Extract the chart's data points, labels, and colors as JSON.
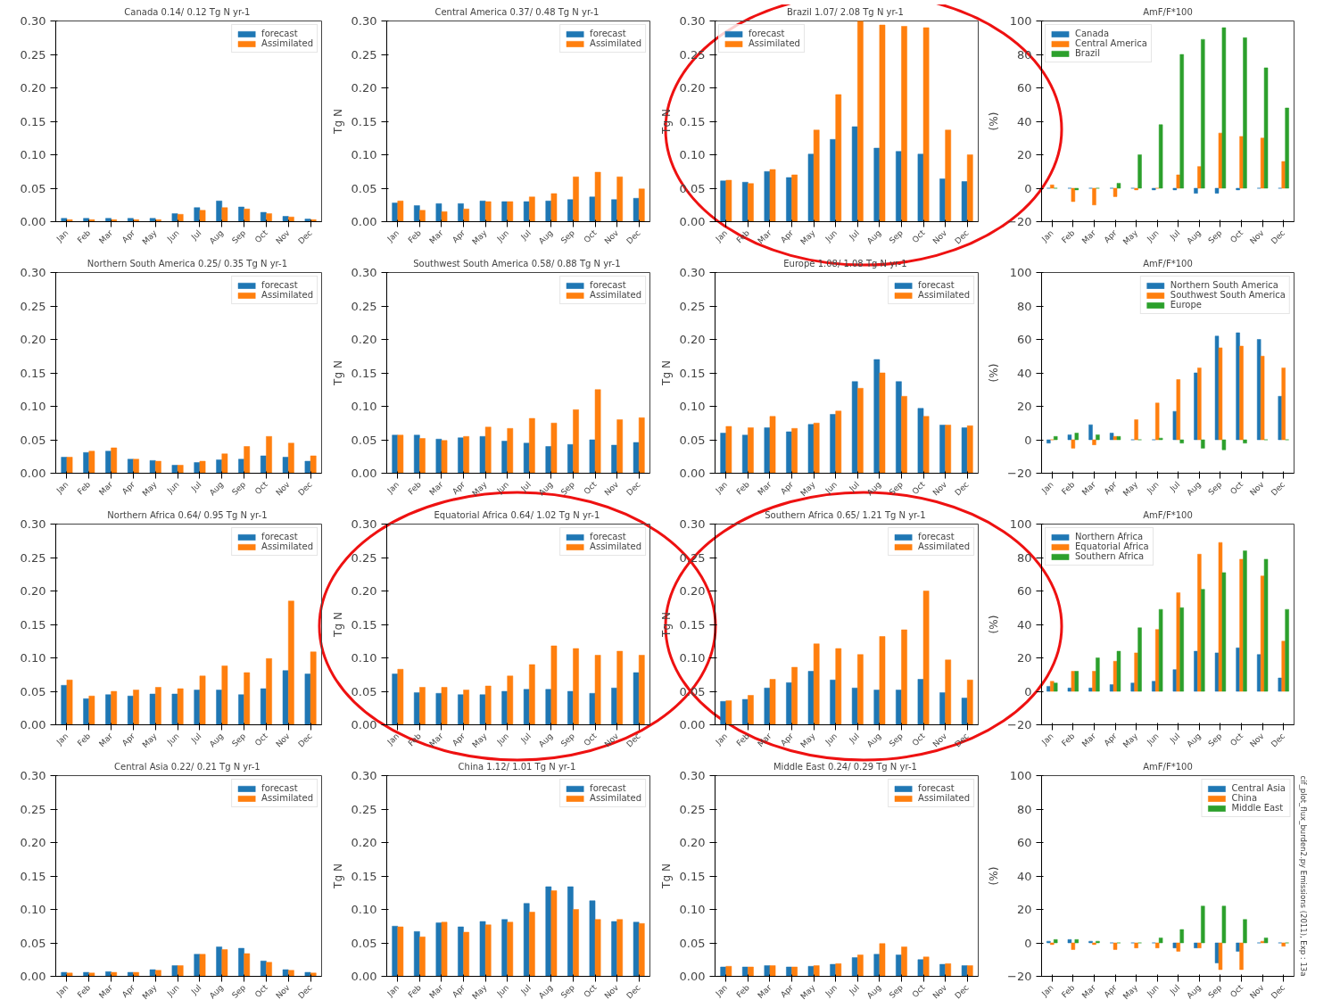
{
  "chart_data": [
    {
      "type": "bar",
      "title": "Canada  0.14/ 0.12 Tg N yr-1",
      "categories": [
        "Jan",
        "Feb",
        "Mar",
        "Apr",
        "May",
        "Jun",
        "Jul",
        "Aug",
        "Sep",
        "Oct",
        "Nov",
        "Dec"
      ],
      "ylim": [
        0,
        0.3
      ],
      "yticks": [
        {
          "value": 0,
          "label": "0.00"
        },
        {
          "value": 0.05,
          "label": "0.05"
        },
        {
          "value": 0.1,
          "label": "0.10"
        },
        {
          "value": 0.15,
          "label": "0.15"
        },
        {
          "value": 0.2,
          "label": "0.20"
        },
        {
          "value": 0.25,
          "label": "0.25"
        },
        {
          "value": 0.3,
          "label": "0.30"
        }
      ],
      "legend": "top right",
      "series": [
        {
          "name": "forecast",
          "color": "#1f77b4",
          "values": [
            0.005,
            0.005,
            0.005,
            0.005,
            0.005,
            0.012,
            0.021,
            0.031,
            0.022,
            0.014,
            0.008,
            0.004
          ]
        },
        {
          "name": "Assimilated",
          "color": "#ff7f0e",
          "values": [
            0.003,
            0.003,
            0.003,
            0.003,
            0.003,
            0.011,
            0.017,
            0.021,
            0.019,
            0.012,
            0.007,
            0.003
          ]
        }
      ]
    },
    {
      "type": "bar",
      "title": "Central America  0.37/ 0.48 Tg N yr-1",
      "ylabel": "Tg N",
      "categories": [
        "Jan",
        "Feb",
        "Mar",
        "Apr",
        "May",
        "Jun",
        "Jul",
        "Aug",
        "Sep",
        "Oct",
        "Nov",
        "Dec"
      ],
      "ylim": [
        0,
        0.3
      ],
      "yticks": [
        {
          "value": 0,
          "label": "0.00"
        },
        {
          "value": 0.05,
          "label": "0.05"
        },
        {
          "value": 0.1,
          "label": "0.10"
        },
        {
          "value": 0.15,
          "label": "0.15"
        },
        {
          "value": 0.2,
          "label": "0.20"
        },
        {
          "value": 0.25,
          "label": "0.25"
        },
        {
          "value": 0.3,
          "label": "0.30"
        }
      ],
      "legend": "top right",
      "series": [
        {
          "name": "forecast",
          "color": "#1f77b4",
          "values": [
            0.028,
            0.024,
            0.027,
            0.027,
            0.031,
            0.03,
            0.03,
            0.031,
            0.033,
            0.037,
            0.033,
            0.035
          ]
        },
        {
          "name": "Assimilated",
          "color": "#ff7f0e",
          "values": [
            0.031,
            0.017,
            0.015,
            0.019,
            0.03,
            0.03,
            0.037,
            0.042,
            0.067,
            0.074,
            0.067,
            0.049
          ]
        }
      ]
    },
    {
      "type": "bar",
      "title": "Brazil  1.07/ 2.08 Tg N yr-1",
      "ylabel": "Tg N",
      "categories": [
        "Jan",
        "Feb",
        "Mar",
        "Apr",
        "May",
        "Jun",
        "Jul",
        "Aug",
        "Sep",
        "Oct",
        "Nov",
        "Dec"
      ],
      "ylim": [
        0,
        0.3
      ],
      "yticks": [
        {
          "value": 0,
          "label": "0.00"
        },
        {
          "value": 0.05,
          "label": "0.05"
        },
        {
          "value": 0.1,
          "label": "0.10"
        },
        {
          "value": 0.15,
          "label": "0.15"
        },
        {
          "value": 0.2,
          "label": "0.20"
        },
        {
          "value": 0.25,
          "label": "0.25"
        },
        {
          "value": 0.3,
          "label": "0.30"
        }
      ],
      "legend": "top left",
      "series": [
        {
          "name": "forecast",
          "color": "#1f77b4",
          "values": [
            0.061,
            0.059,
            0.075,
            0.066,
            0.101,
            0.123,
            0.142,
            0.11,
            0.105,
            0.101,
            0.064,
            0.06
          ]
        },
        {
          "name": "Assimilated",
          "color": "#ff7f0e",
          "values": [
            0.062,
            0.057,
            0.078,
            0.07,
            0.137,
            0.19,
            0.3,
            0.294,
            0.292,
            0.29,
            0.137,
            0.1
          ]
        }
      ]
    },
    {
      "type": "bar",
      "title": "AmF/F*100",
      "ylabel": "(%)",
      "categories": [
        "Jan",
        "Feb",
        "Mar",
        "Apr",
        "May",
        "Jun",
        "Jul",
        "Aug",
        "Sep",
        "Oct",
        "Nov",
        "Dec"
      ],
      "ylim": [
        -20,
        100
      ],
      "yticks": [
        {
          "value": -20,
          "label": "−20"
        },
        0,
        20,
        40,
        60,
        80,
        100
      ],
      "legend": "top left",
      "series": [
        {
          "name": "Canada",
          "color": "#1f77b4",
          "values": [
            0,
            0,
            0,
            0,
            0,
            -1,
            -1,
            -3,
            -3,
            -1,
            0,
            0
          ]
        },
        {
          "name": "Central America",
          "color": "#ff7f0e",
          "values": [
            2,
            -8,
            -10,
            -5,
            -1,
            0,
            8,
            13,
            33,
            31,
            30,
            16
          ]
        },
        {
          "name": "Brazil",
          "color": "#2ca02c",
          "values": [
            0,
            -1,
            0,
            3,
            20,
            38,
            80,
            89,
            96,
            90,
            72,
            48
          ]
        }
      ]
    },
    {
      "type": "bar",
      "title": "Northern South America  0.25/ 0.35 Tg N yr-1",
      "categories": [
        "Jan",
        "Feb",
        "Mar",
        "Apr",
        "May",
        "Jun",
        "Jul",
        "Aug",
        "Sep",
        "Oct",
        "Nov",
        "Dec"
      ],
      "ylim": [
        0,
        0.3
      ],
      "yticks": [
        {
          "value": 0,
          "label": "0.00"
        },
        {
          "value": 0.05,
          "label": "0.05"
        },
        {
          "value": 0.1,
          "label": "0.10"
        },
        {
          "value": 0.15,
          "label": "0.15"
        },
        {
          "value": 0.2,
          "label": "0.20"
        },
        {
          "value": 0.25,
          "label": "0.25"
        },
        {
          "value": 0.3,
          "label": "0.30"
        }
      ],
      "legend": "top right",
      "series": [
        {
          "name": "forecast",
          "color": "#1f77b4",
          "values": [
            0.024,
            0.031,
            0.033,
            0.021,
            0.019,
            0.012,
            0.016,
            0.02,
            0.021,
            0.026,
            0.024,
            0.018
          ]
        },
        {
          "name": "Assimilated",
          "color": "#ff7f0e",
          "values": [
            0.024,
            0.033,
            0.038,
            0.021,
            0.018,
            0.012,
            0.018,
            0.029,
            0.04,
            0.055,
            0.045,
            0.026
          ]
        }
      ]
    },
    {
      "type": "bar",
      "title": "Southwest South America  0.58/ 0.88 Tg N yr-1",
      "ylabel": "Tg N",
      "categories": [
        "Jan",
        "Feb",
        "Mar",
        "Apr",
        "May",
        "Jun",
        "Jul",
        "Aug",
        "Sep",
        "Oct",
        "Nov",
        "Dec"
      ],
      "ylim": [
        0,
        0.3
      ],
      "yticks": [
        {
          "value": 0,
          "label": "0.00"
        },
        {
          "value": 0.05,
          "label": "0.05"
        },
        {
          "value": 0.1,
          "label": "0.10"
        },
        {
          "value": 0.15,
          "label": "0.15"
        },
        {
          "value": 0.2,
          "label": "0.20"
        },
        {
          "value": 0.25,
          "label": "0.25"
        },
        {
          "value": 0.3,
          "label": "0.30"
        }
      ],
      "legend": "top right",
      "series": [
        {
          "name": "forecast",
          "color": "#1f77b4",
          "values": [
            0.057,
            0.057,
            0.051,
            0.053,
            0.055,
            0.048,
            0.045,
            0.04,
            0.043,
            0.05,
            0.042,
            0.046
          ]
        },
        {
          "name": "Assimilated",
          "color": "#ff7f0e",
          "values": [
            0.057,
            0.052,
            0.049,
            0.055,
            0.069,
            0.067,
            0.082,
            0.075,
            0.095,
            0.125,
            0.08,
            0.083
          ]
        }
      ]
    },
    {
      "type": "bar",
      "title": "Europe  1.08/ 1.08 Tg N yr-1",
      "ylabel": "Tg N",
      "categories": [
        "Jan",
        "Feb",
        "Mar",
        "Apr",
        "May",
        "Jun",
        "Jul",
        "Aug",
        "Sep",
        "Oct",
        "Nov",
        "Dec"
      ],
      "ylim": [
        0,
        0.3
      ],
      "yticks": [
        {
          "value": 0,
          "label": "0.00"
        },
        {
          "value": 0.05,
          "label": "0.05"
        },
        {
          "value": 0.1,
          "label": "0.10"
        },
        {
          "value": 0.15,
          "label": "0.15"
        },
        {
          "value": 0.2,
          "label": "0.20"
        },
        {
          "value": 0.25,
          "label": "0.25"
        },
        {
          "value": 0.3,
          "label": "0.30"
        }
      ],
      "legend": "top right",
      "series": [
        {
          "name": "forecast",
          "color": "#1f77b4",
          "values": [
            0.06,
            0.057,
            0.068,
            0.062,
            0.073,
            0.088,
            0.137,
            0.17,
            0.137,
            0.097,
            0.072,
            0.068
          ]
        },
        {
          "name": "Assimilated",
          "color": "#ff7f0e",
          "values": [
            0.07,
            0.068,
            0.085,
            0.067,
            0.075,
            0.093,
            0.127,
            0.15,
            0.115,
            0.085,
            0.072,
            0.071
          ]
        }
      ]
    },
    {
      "type": "bar",
      "title": "AmF/F*100",
      "ylabel": "(%)",
      "categories": [
        "Jan",
        "Feb",
        "Mar",
        "Apr",
        "May",
        "Jun",
        "Jul",
        "Aug",
        "Sep",
        "Oct",
        "Nov",
        "Dec"
      ],
      "ylim": [
        -20,
        100
      ],
      "yticks": [
        {
          "value": -20,
          "label": "−20"
        },
        0,
        20,
        40,
        60,
        80,
        100
      ],
      "legend": "top right",
      "series": [
        {
          "name": "Northern South America",
          "color": "#1f77b4",
          "values": [
            -2,
            3,
            9,
            4,
            0,
            0,
            17,
            40,
            62,
            64,
            60,
            26
          ]
        },
        {
          "name": "Southwest South America",
          "color": "#ff7f0e",
          "values": [
            0,
            -5,
            -3,
            2,
            12,
            22,
            36,
            43,
            55,
            56,
            50,
            43
          ]
        },
        {
          "name": "Europe",
          "color": "#2ca02c",
          "values": [
            2,
            4,
            3,
            2,
            0,
            1,
            -2,
            -5,
            -6,
            -2,
            0,
            0
          ]
        }
      ]
    },
    {
      "type": "bar",
      "title": "Northern Africa  0.64/ 0.95 Tg N yr-1",
      "categories": [
        "Jan",
        "Feb",
        "Mar",
        "Apr",
        "May",
        "Jun",
        "Jul",
        "Aug",
        "Sep",
        "Oct",
        "Nov",
        "Dec"
      ],
      "ylim": [
        0,
        0.3
      ],
      "yticks": [
        {
          "value": 0,
          "label": "0.00"
        },
        {
          "value": 0.05,
          "label": "0.05"
        },
        {
          "value": 0.1,
          "label": "0.10"
        },
        {
          "value": 0.15,
          "label": "0.15"
        },
        {
          "value": 0.2,
          "label": "0.20"
        },
        {
          "value": 0.25,
          "label": "0.25"
        },
        {
          "value": 0.3,
          "label": "0.30"
        }
      ],
      "legend": "top right",
      "series": [
        {
          "name": "forecast",
          "color": "#1f77b4",
          "values": [
            0.059,
            0.039,
            0.045,
            0.043,
            0.046,
            0.046,
            0.052,
            0.052,
            0.045,
            0.054,
            0.081,
            0.076
          ]
        },
        {
          "name": "Assimilated",
          "color": "#ff7f0e",
          "values": [
            0.067,
            0.043,
            0.05,
            0.052,
            0.056,
            0.054,
            0.073,
            0.088,
            0.078,
            0.099,
            0.185,
            0.109
          ]
        }
      ]
    },
    {
      "type": "bar",
      "title": "Equatorial Africa  0.64/ 1.02 Tg N yr-1",
      "ylabel": "Tg N",
      "categories": [
        "Jan",
        "Feb",
        "Mar",
        "Apr",
        "May",
        "Jun",
        "Jul",
        "Aug",
        "Sep",
        "Oct",
        "Nov",
        "Dec"
      ],
      "ylim": [
        0,
        0.3
      ],
      "yticks": [
        {
          "value": 0,
          "label": "0.00"
        },
        {
          "value": 0.05,
          "label": "0.05"
        },
        {
          "value": 0.1,
          "label": "0.10"
        },
        {
          "value": 0.15,
          "label": "0.15"
        },
        {
          "value": 0.2,
          "label": "0.20"
        },
        {
          "value": 0.25,
          "label": "0.25"
        },
        {
          "value": 0.3,
          "label": "0.30"
        }
      ],
      "legend": "top right",
      "series": [
        {
          "name": "forecast",
          "color": "#1f77b4",
          "values": [
            0.076,
            0.048,
            0.047,
            0.045,
            0.045,
            0.05,
            0.053,
            0.053,
            0.05,
            0.047,
            0.055,
            0.078
          ]
        },
        {
          "name": "Assimilated",
          "color": "#ff7f0e",
          "values": [
            0.083,
            0.056,
            0.056,
            0.052,
            0.058,
            0.073,
            0.09,
            0.118,
            0.114,
            0.104,
            0.11,
            0.104
          ]
        }
      ]
    },
    {
      "type": "bar",
      "title": "Southern Africa  0.65/ 1.21 Tg N yr-1",
      "ylabel": "Tg N",
      "categories": [
        "Jan",
        "Feb",
        "Mar",
        "Apr",
        "May",
        "Jun",
        "Jul",
        "Aug",
        "Sep",
        "Oct",
        "Nov",
        "Dec"
      ],
      "ylim": [
        0,
        0.3
      ],
      "yticks": [
        {
          "value": 0,
          "label": "0.00"
        },
        {
          "value": 0.05,
          "label": "0.05"
        },
        {
          "value": 0.1,
          "label": "0.10"
        },
        {
          "value": 0.15,
          "label": "0.15"
        },
        {
          "value": 0.2,
          "label": "0.20"
        },
        {
          "value": 0.25,
          "label": "0.25"
        },
        {
          "value": 0.3,
          "label": "0.30"
        }
      ],
      "legend": "top right",
      "series": [
        {
          "name": "forecast",
          "color": "#1f77b4",
          "values": [
            0.035,
            0.038,
            0.055,
            0.063,
            0.08,
            0.067,
            0.055,
            0.052,
            0.052,
            0.068,
            0.048,
            0.04
          ]
        },
        {
          "name": "Assimilated",
          "color": "#ff7f0e",
          "values": [
            0.036,
            0.044,
            0.068,
            0.086,
            0.121,
            0.114,
            0.105,
            0.132,
            0.142,
            0.2,
            0.097,
            0.067
          ]
        }
      ]
    },
    {
      "type": "bar",
      "title": "AmF/F*100",
      "ylabel": "(%)",
      "categories": [
        "Jan",
        "Feb",
        "Mar",
        "Apr",
        "May",
        "Jun",
        "Jul",
        "Aug",
        "Sep",
        "Oct",
        "Nov",
        "Dec"
      ],
      "ylim": [
        -20,
        100
      ],
      "yticks": [
        {
          "value": -20,
          "label": "−20"
        },
        0,
        20,
        40,
        60,
        80,
        100
      ],
      "legend": "top left",
      "series": [
        {
          "name": "Northern Africa",
          "color": "#1f77b4",
          "values": [
            3,
            2,
            2,
            4,
            5,
            6,
            13,
            24,
            23,
            26,
            22,
            8
          ]
        },
        {
          "name": "Equatorial Africa",
          "color": "#ff7f0e",
          "values": [
            6,
            12,
            12,
            18,
            23,
            37,
            59,
            82,
            89,
            79,
            69,
            30
          ]
        },
        {
          "name": "Southern Africa",
          "color": "#2ca02c",
          "values": [
            5,
            12,
            20,
            24,
            38,
            49,
            50,
            61,
            71,
            84,
            79,
            49
          ]
        }
      ]
    },
    {
      "type": "bar",
      "title": "Central Asia  0.22/ 0.21 Tg N yr-1",
      "categories": [
        "Jan",
        "Feb",
        "Mar",
        "Apr",
        "May",
        "Jun",
        "Jul",
        "Aug",
        "Sep",
        "Oct",
        "Nov",
        "Dec"
      ],
      "ylim": [
        0,
        0.3
      ],
      "yticks": [
        {
          "value": 0,
          "label": "0.00"
        },
        {
          "value": 0.05,
          "label": "0.05"
        },
        {
          "value": 0.1,
          "label": "0.10"
        },
        {
          "value": 0.15,
          "label": "0.15"
        },
        {
          "value": 0.2,
          "label": "0.20"
        },
        {
          "value": 0.25,
          "label": "0.25"
        },
        {
          "value": 0.3,
          "label": "0.30"
        }
      ],
      "legend": "top right",
      "series": [
        {
          "name": "forecast",
          "color": "#1f77b4",
          "values": [
            0.006,
            0.006,
            0.007,
            0.006,
            0.01,
            0.016,
            0.033,
            0.044,
            0.042,
            0.023,
            0.01,
            0.006
          ]
        },
        {
          "name": "Assimilated",
          "color": "#ff7f0e",
          "values": [
            0.005,
            0.005,
            0.006,
            0.006,
            0.009,
            0.016,
            0.033,
            0.04,
            0.034,
            0.021,
            0.009,
            0.005
          ]
        }
      ]
    },
    {
      "type": "bar",
      "title": "China  1.12/ 1.01 Tg N yr-1",
      "ylabel": "Tg N",
      "categories": [
        "Jan",
        "Feb",
        "Mar",
        "Apr",
        "May",
        "Jun",
        "Jul",
        "Aug",
        "Sep",
        "Oct",
        "Nov",
        "Dec"
      ],
      "ylim": [
        0,
        0.3
      ],
      "yticks": [
        {
          "value": 0,
          "label": "0.00"
        },
        {
          "value": 0.05,
          "label": "0.05"
        },
        {
          "value": 0.1,
          "label": "0.10"
        },
        {
          "value": 0.15,
          "label": "0.15"
        },
        {
          "value": 0.2,
          "label": "0.20"
        },
        {
          "value": 0.25,
          "label": "0.25"
        },
        {
          "value": 0.3,
          "label": "0.30"
        }
      ],
      "legend": "top right",
      "series": [
        {
          "name": "forecast",
          "color": "#1f77b4",
          "values": [
            0.075,
            0.067,
            0.08,
            0.074,
            0.082,
            0.085,
            0.109,
            0.134,
            0.134,
            0.113,
            0.082,
            0.081
          ]
        },
        {
          "name": "Assimilated",
          "color": "#ff7f0e",
          "values": [
            0.074,
            0.059,
            0.081,
            0.066,
            0.077,
            0.081,
            0.096,
            0.128,
            0.1,
            0.085,
            0.085,
            0.079
          ]
        }
      ]
    },
    {
      "type": "bar",
      "title": "Middle East  0.24/ 0.29 Tg N yr-1",
      "ylabel": "Tg N",
      "categories": [
        "Jan",
        "Feb",
        "Mar",
        "Apr",
        "May",
        "Jun",
        "Jul",
        "Aug",
        "Sep",
        "Oct",
        "Nov",
        "Dec"
      ],
      "ylim": [
        0,
        0.3
      ],
      "yticks": [
        {
          "value": 0,
          "label": "0.00"
        },
        {
          "value": 0.05,
          "label": "0.05"
        },
        {
          "value": 0.1,
          "label": "0.10"
        },
        {
          "value": 0.15,
          "label": "0.15"
        },
        {
          "value": 0.2,
          "label": "0.20"
        },
        {
          "value": 0.25,
          "label": "0.25"
        },
        {
          "value": 0.3,
          "label": "0.30"
        }
      ],
      "legend": "top right",
      "series": [
        {
          "name": "forecast",
          "color": "#1f77b4",
          "values": [
            0.014,
            0.014,
            0.016,
            0.014,
            0.015,
            0.018,
            0.028,
            0.033,
            0.032,
            0.025,
            0.018,
            0.016
          ]
        },
        {
          "name": "Assimilated",
          "color": "#ff7f0e",
          "values": [
            0.015,
            0.014,
            0.016,
            0.014,
            0.016,
            0.019,
            0.032,
            0.049,
            0.044,
            0.029,
            0.019,
            0.016
          ]
        }
      ]
    },
    {
      "type": "bar",
      "title": "AmF/F*100",
      "ylabel": "(%)",
      "categories": [
        "Jan",
        "Feb",
        "Mar",
        "Apr",
        "May",
        "Jun",
        "Jul",
        "Aug",
        "Sep",
        "Oct",
        "Nov",
        "Dec"
      ],
      "ylim": [
        -20,
        100
      ],
      "yticks": [
        {
          "value": -20,
          "label": "−20"
        },
        0,
        20,
        40,
        60,
        80,
        100
      ],
      "legend": "top right",
      "annotations": [
        "cif_plot_flux_burden2.py Emissions (2011), Exp : 13a"
      ],
      "series": [
        {
          "name": "Central Asia",
          "color": "#1f77b4",
          "values": [
            1,
            2,
            1,
            0,
            0,
            0,
            -3,
            -3,
            -12,
            -5,
            0,
            0
          ]
        },
        {
          "name": "China",
          "color": "#ff7f0e",
          "values": [
            -1,
            -4,
            -1,
            -4,
            -3,
            -3,
            -5,
            -3,
            -16,
            -16,
            1,
            -2
          ]
        },
        {
          "name": "Middle East",
          "color": "#2ca02c",
          "values": [
            2,
            2,
            1,
            0,
            0,
            3,
            8,
            22,
            22,
            14,
            3,
            0
          ]
        }
      ]
    }
  ]
}
